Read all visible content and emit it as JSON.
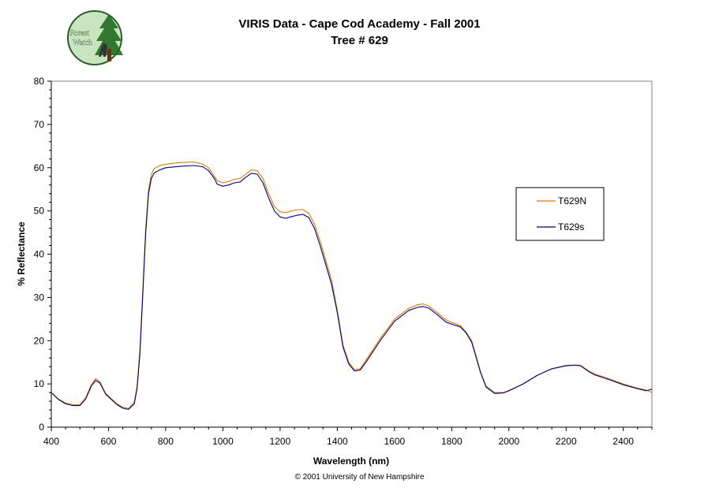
{
  "logo": {
    "line1": "Forest",
    "line2": "Watch"
  },
  "header": {
    "title": "VIRIS Data - Cape Cod Academy - Fall 2001",
    "subtitle": "Tree # 629"
  },
  "footer": {
    "copyright": "© 2001 University of New Hampshire"
  },
  "colors": {
    "T629N": "#e07b00",
    "T629s": "#000080",
    "frame": "#808080"
  },
  "chart_data": {
    "type": "line",
    "title": "VIRIS Data - Cape Cod Academy - Fall 2001",
    "subtitle": "Tree # 629",
    "xlabel": "Wavelength (nm)",
    "ylabel": "% Reflectance",
    "xlim": [
      400,
      2500
    ],
    "ylim": [
      0,
      80
    ],
    "xticks": [
      400,
      600,
      800,
      1000,
      1200,
      1400,
      1600,
      1800,
      2000,
      2200,
      2400
    ],
    "yticks": [
      0,
      10,
      20,
      30,
      40,
      50,
      60,
      70,
      80
    ],
    "grid": false,
    "legend_position": "right",
    "series": [
      {
        "name": "T629N",
        "color": "#e07b00",
        "x": [
          400,
          425,
          450,
          475,
          500,
          520,
          540,
          555,
          570,
          590,
          610,
          630,
          650,
          670,
          690,
          700,
          710,
          720,
          730,
          740,
          750,
          760,
          780,
          800,
          850,
          900,
          930,
          950,
          970,
          980,
          1000,
          1020,
          1040,
          1060,
          1080,
          1100,
          1120,
          1140,
          1160,
          1180,
          1200,
          1220,
          1240,
          1260,
          1280,
          1300,
          1320,
          1340,
          1360,
          1380,
          1400,
          1420,
          1440,
          1460,
          1480,
          1500,
          1550,
          1600,
          1650,
          1680,
          1700,
          1720,
          1750,
          1780,
          1800,
          1830,
          1850,
          1870,
          1900,
          1920,
          1950,
          1980,
          2000,
          2050,
          2100,
          2150,
          2200,
          2230,
          2250,
          2280,
          2300,
          2350,
          2400,
          2450,
          2480,
          2500
        ],
        "y": [
          8,
          6.5,
          5.6,
          5.2,
          5.2,
          6.8,
          9.8,
          11.2,
          10.5,
          7.8,
          6.6,
          5.4,
          4.6,
          4.3,
          5.8,
          9.5,
          18,
          32,
          46,
          55,
          58.5,
          59.8,
          60.5,
          60.8,
          61.2,
          61.3,
          60.8,
          60,
          58,
          57,
          56.5,
          56.8,
          57.3,
          57.5,
          58.5,
          59.5,
          59.3,
          57.5,
          54,
          51,
          49.8,
          49.6,
          50,
          50.3,
          50.3,
          49.5,
          47,
          43,
          38.5,
          34,
          27,
          19,
          15,
          13.3,
          13.5,
          15.5,
          20.5,
          25,
          27.5,
          28.3,
          28.5,
          28,
          26.5,
          24.8,
          24.2,
          23.5,
          22,
          20,
          13,
          9.5,
          8,
          8,
          8.5,
          10,
          12,
          13.5,
          14.3,
          14.4,
          14.3,
          13,
          12.3,
          11.2,
          10,
          9,
          8.6,
          8
        ]
      },
      {
        "name": "T629s",
        "color": "#000080",
        "x": [
          400,
          425,
          450,
          475,
          500,
          520,
          540,
          555,
          570,
          590,
          610,
          630,
          650,
          670,
          690,
          700,
          710,
          720,
          730,
          740,
          750,
          760,
          780,
          800,
          850,
          900,
          930,
          950,
          970,
          980,
          1000,
          1020,
          1040,
          1060,
          1080,
          1100,
          1120,
          1140,
          1160,
          1180,
          1200,
          1220,
          1240,
          1260,
          1280,
          1300,
          1320,
          1340,
          1360,
          1380,
          1400,
          1420,
          1440,
          1460,
          1480,
          1500,
          1550,
          1600,
          1650,
          1680,
          1700,
          1720,
          1750,
          1780,
          1800,
          1830,
          1850,
          1870,
          1900,
          1920,
          1950,
          1980,
          2000,
          2050,
          2100,
          2150,
          2200,
          2230,
          2250,
          2280,
          2300,
          2350,
          2400,
          2450,
          2480,
          2500
        ],
        "y": [
          8,
          6.4,
          5.4,
          5,
          5,
          6.5,
          9.5,
          10.8,
          10.2,
          7.6,
          6.4,
          5.2,
          4.4,
          4.1,
          5.4,
          9,
          17,
          31,
          45,
          54,
          57.5,
          58.8,
          59.5,
          60,
          60.3,
          60.5,
          60.2,
          59.3,
          57.5,
          56.2,
          55.7,
          56,
          56.5,
          56.7,
          57.8,
          58.7,
          58.5,
          56.5,
          53,
          50,
          48.6,
          48.3,
          48.7,
          49,
          49.2,
          48.5,
          46,
          42,
          37.5,
          33,
          26.5,
          18.5,
          14.6,
          13,
          13.2,
          15,
          20,
          24.5,
          27,
          27.7,
          27.9,
          27.5,
          26,
          24.3,
          23.8,
          23.2,
          21.8,
          19.6,
          12.8,
          9.3,
          7.8,
          7.9,
          8.4,
          10,
          12,
          13.5,
          14.2,
          14.3,
          14.2,
          12.8,
          12.1,
          11,
          9.8,
          8.9,
          8.4,
          8.8
        ]
      }
    ]
  }
}
